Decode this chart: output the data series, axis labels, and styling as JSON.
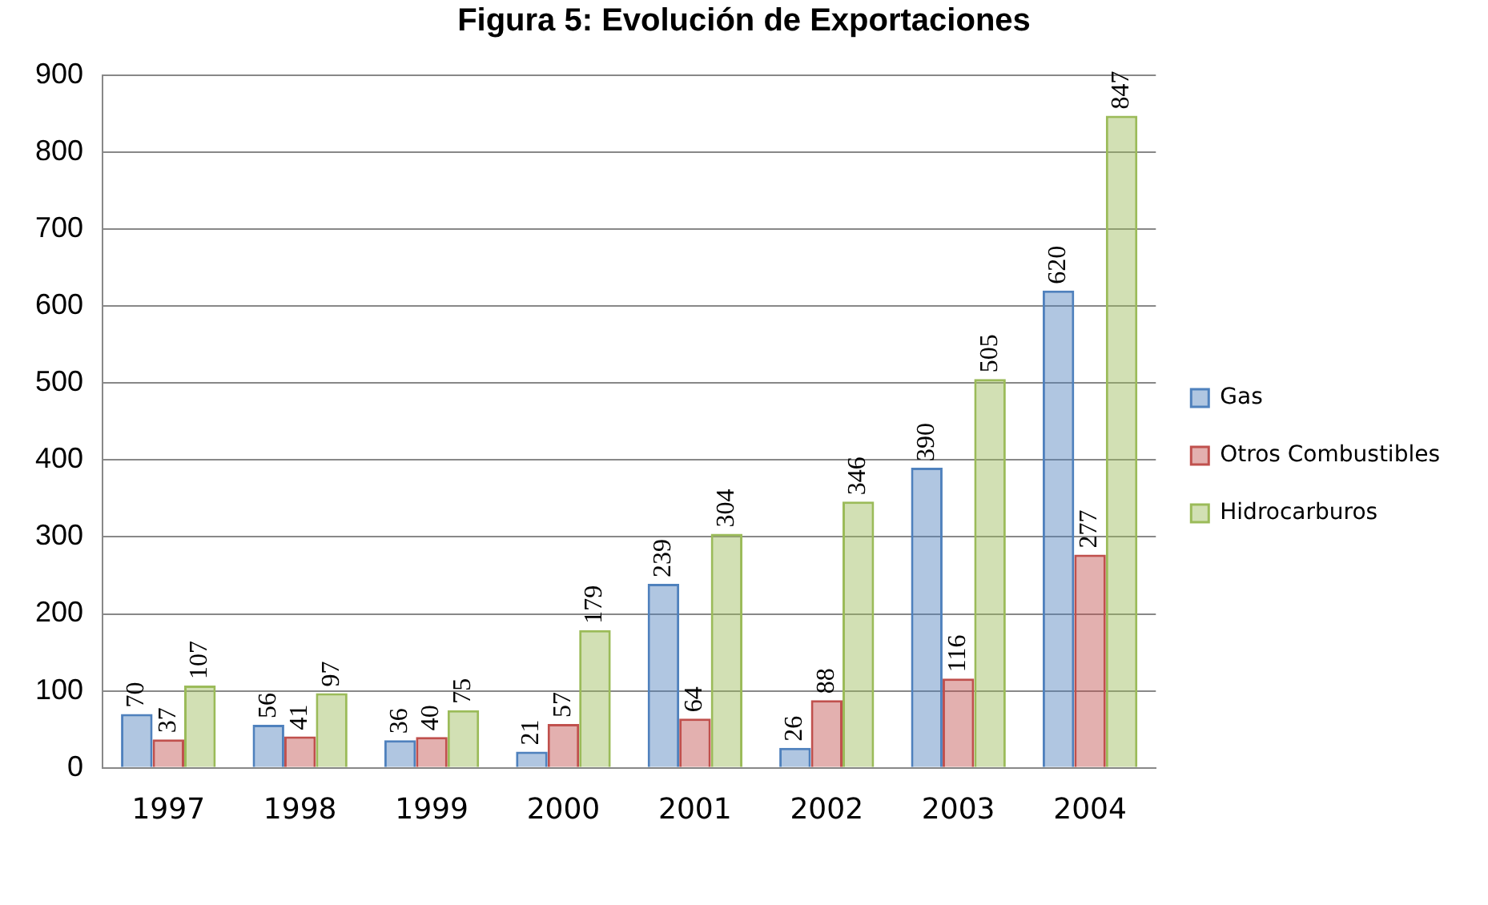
{
  "chart_data": {
    "type": "bar",
    "title": "Figura 5: Evolución de Exportaciones",
    "categories": [
      "1997",
      "1998",
      "1999",
      "2000",
      "2001",
      "2002",
      "2003",
      "2004"
    ],
    "series": [
      {
        "name": "Gas",
        "color": "#4f81bd",
        "values": [
          70,
          56,
          36,
          21,
          239,
          26,
          390,
          620
        ]
      },
      {
        "name": "Otros Combustibles",
        "color": "#c0504d",
        "values": [
          37,
          41,
          40,
          57,
          64,
          88,
          116,
          277
        ]
      },
      {
        "name": "Hidrocarburos",
        "color": "#9bbb59",
        "values": [
          107,
          97,
          75,
          179,
          304,
          346,
          505,
          847
        ]
      }
    ],
    "ylim": [
      0,
      900
    ],
    "yticks": [
      0,
      100,
      200,
      300,
      400,
      500,
      600,
      700,
      800,
      900
    ],
    "grid": "y",
    "legend": "right",
    "data_labels": true
  }
}
